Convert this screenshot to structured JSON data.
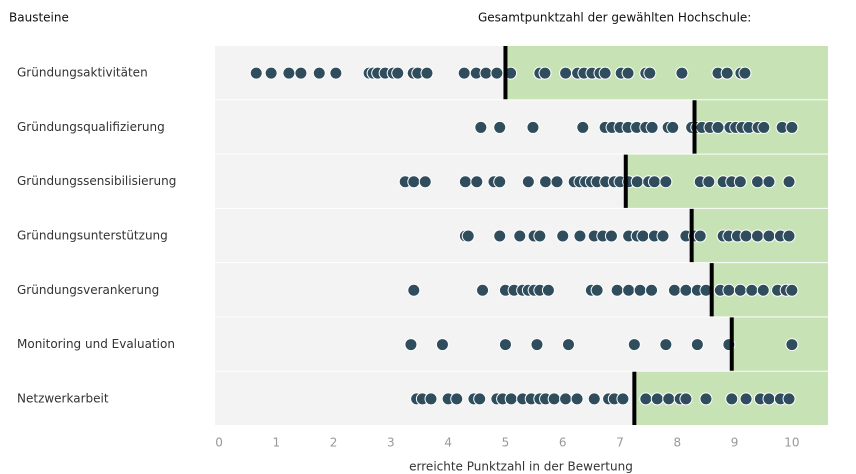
{
  "chart_data": {
    "type": "strip",
    "title": "Gesamtpunktzahl der gewählten Hochschule:",
    "ylabel": "Bausteine",
    "xlabel": "erreichte Punktzahl in der Bewertung",
    "categories": [
      "Gründungsaktivitäten",
      "Gründungsqualifizierung",
      "Gründungssensibilisierung",
      "Gründungsunterstützung",
      "Gründungsverankerung",
      "Monitoring und Evaluation",
      "Netzwerkarbeit"
    ],
    "values": [
      [
        0.65,
        0.91,
        1.22,
        1.43,
        1.75,
        2.04,
        2.62,
        2.69,
        2.77,
        2.9,
        3.04,
        3.12,
        3.39,
        3.47,
        3.63,
        4.28,
        4.49,
        4.66,
        4.85,
        5.09,
        5.6,
        5.69,
        6.05,
        6.26,
        6.37,
        6.51,
        6.65,
        6.74,
        7.02,
        7.14,
        7.45,
        7.52,
        8.08,
        8.71,
        8.87,
        9.11,
        9.18
      ],
      [
        4.57,
        4.9,
        5.48,
        6.35,
        6.74,
        6.86,
        7.0,
        7.14,
        7.29,
        7.45,
        7.56,
        7.84,
        7.92,
        8.25,
        8.34,
        8.43,
        8.57,
        8.71,
        8.92,
        9.02,
        9.13,
        9.25,
        9.41,
        9.51,
        9.83,
        10
      ],
      [
        3.25,
        3.4,
        3.6,
        4.3,
        4.5,
        4.8,
        4.9,
        5.4,
        5.7,
        5.9,
        6.2,
        6.3,
        6.4,
        6.5,
        6.6,
        6.75,
        6.9,
        7.0,
        7.15,
        7.3,
        7.5,
        7.6,
        7.8,
        8.4,
        8.55,
        8.8,
        8.95,
        9.1,
        9.4,
        9.6,
        9.95
      ],
      [
        4.3,
        4.35,
        4.9,
        5.25,
        5.5,
        5.6,
        6.0,
        6.3,
        6.55,
        6.7,
        6.85,
        7.15,
        7.3,
        7.4,
        7.6,
        7.75,
        8.15,
        8.3,
        8.4,
        8.8,
        8.9,
        9.05,
        9.2,
        9.4,
        9.6,
        9.8,
        9.95
      ],
      [
        3.4,
        4.6,
        5.0,
        5.15,
        5.3,
        5.4,
        5.5,
        5.6,
        5.75,
        6.5,
        6.6,
        6.95,
        7.15,
        7.35,
        7.55,
        7.95,
        8.15,
        8.35,
        8.5,
        8.75,
        8.9,
        9.1,
        9.3,
        9.5,
        9.75,
        9.9,
        10
      ],
      [
        3.35,
        3.9,
        5.0,
        5.55,
        6.1,
        7.25,
        7.8,
        8.35,
        8.9,
        10
      ],
      [
        3.45,
        3.55,
        3.7,
        4.0,
        4.15,
        4.45,
        4.55,
        4.85,
        4.95,
        5.1,
        5.3,
        5.45,
        5.6,
        5.7,
        5.85,
        6.05,
        6.25,
        6.55,
        6.8,
        6.9,
        7.05,
        7.45,
        7.65,
        7.85,
        8.05,
        8.15,
        8.5,
        8.95,
        9.2,
        9.45,
        9.6,
        9.8,
        9.95
      ]
    ],
    "markers": [
      5.0,
      8.3,
      7.1,
      8.25,
      8.6,
      8.95,
      7.25
    ],
    "color": "#2f4d5c",
    "marker_color": "#000000",
    "above_color": "#c7e2b5",
    "background_color": "#f3f3f3",
    "xlim": [
      -0.07,
      10.63
    ],
    "xticks": [
      0,
      1,
      2,
      3,
      4,
      5,
      6,
      7,
      8,
      9,
      10
    ]
  }
}
